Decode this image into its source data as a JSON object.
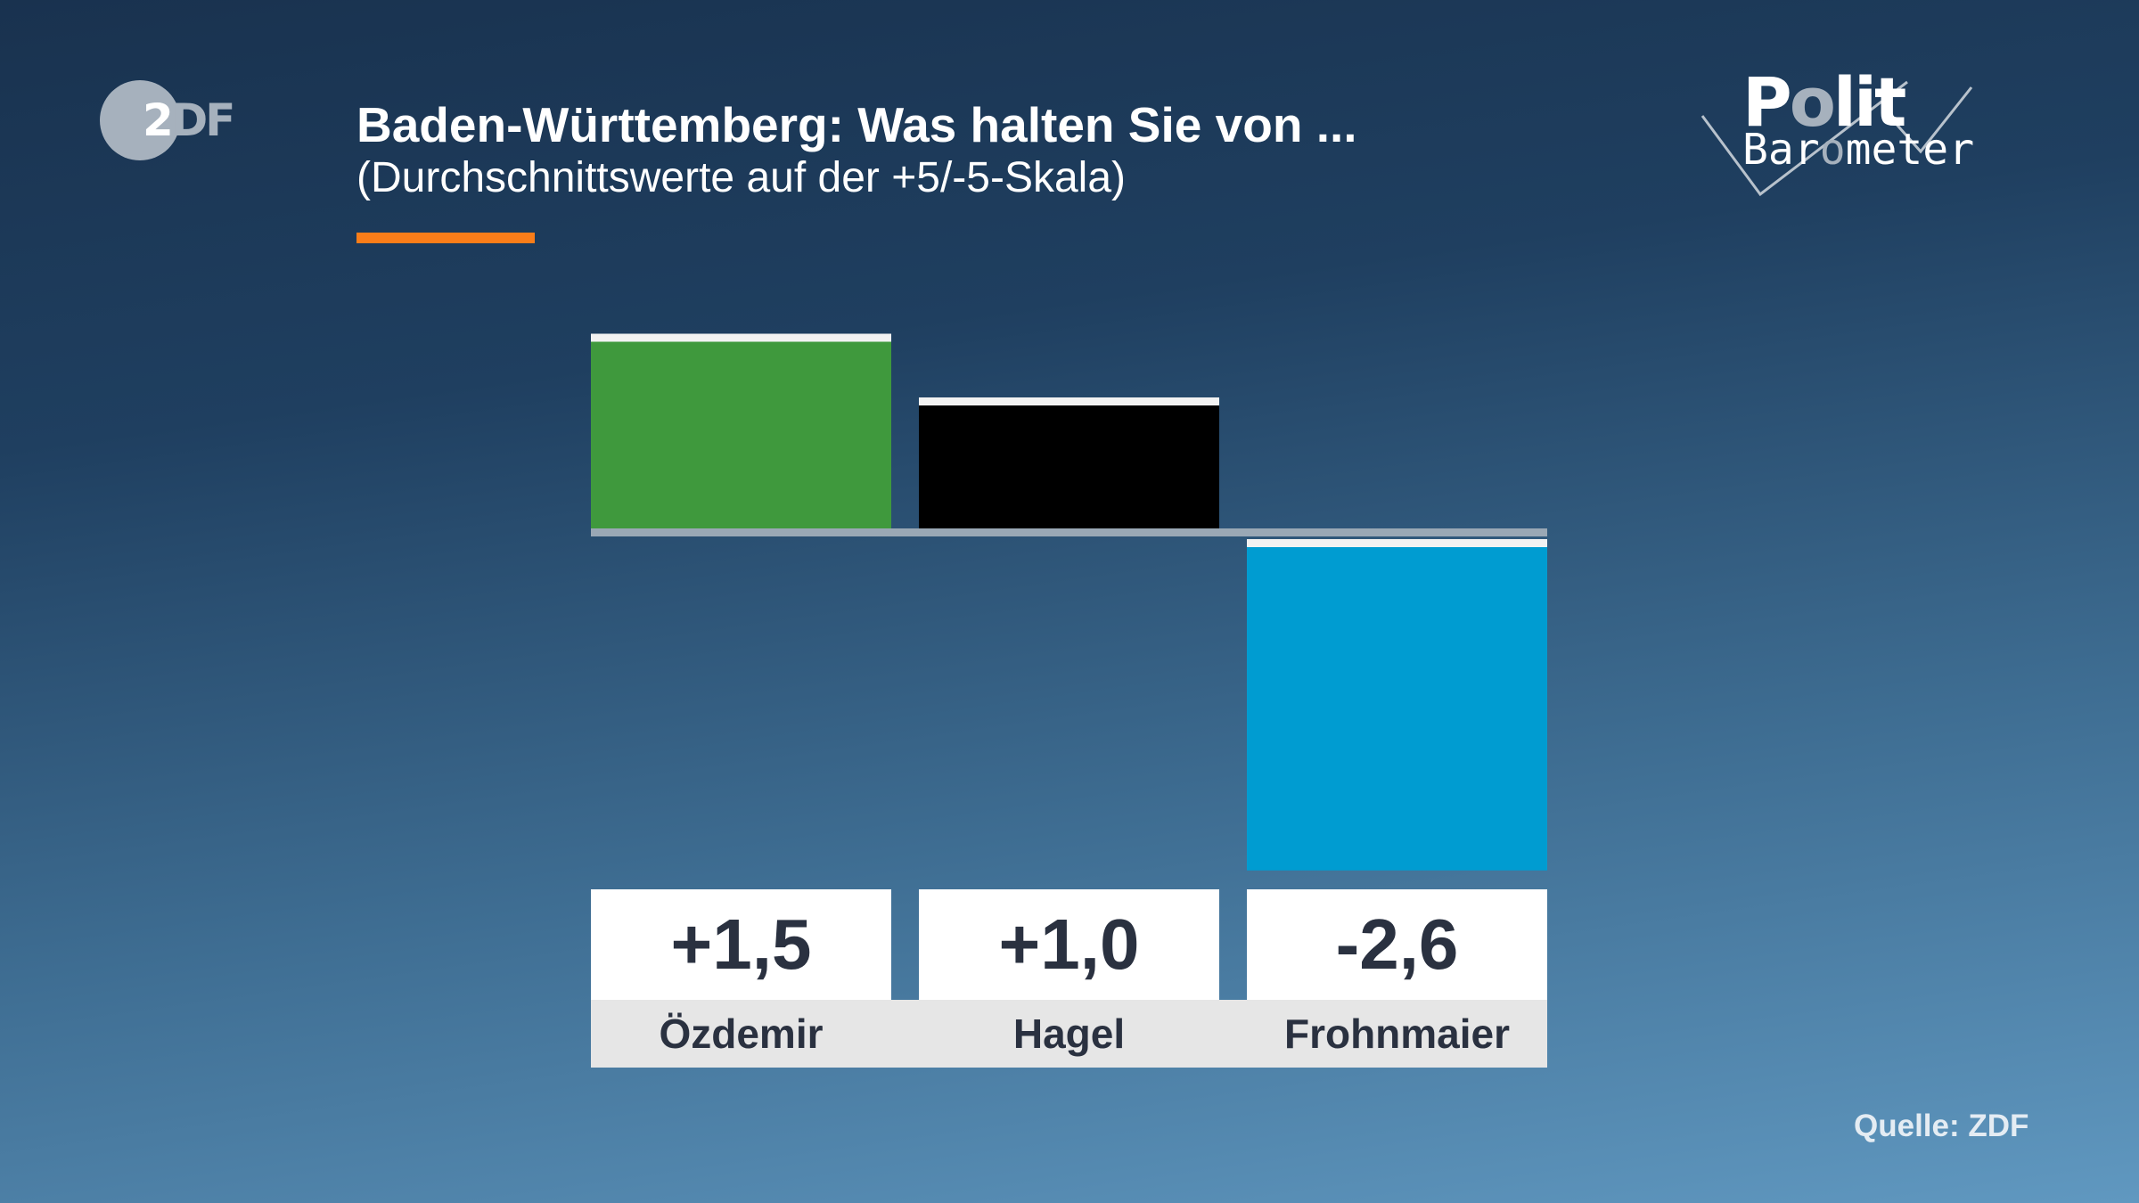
{
  "header": {
    "title": "Baden-Württemberg: Was halten Sie von ...",
    "subtitle": "(Durchschnittswerte auf der +5/-5-Skala)",
    "accent_color": "#fa7d19"
  },
  "branding": {
    "broadcaster_logo": "ZDF",
    "show_logo": "Polit Barometer"
  },
  "chart_data": {
    "type": "bar",
    "title": "Baden-Württemberg: Was halten Sie von ...",
    "subtitle": "(Durchschnittswerte auf der +5/-5-Skala)",
    "categories": [
      "Özdemir",
      "Hagel",
      "Frohnmaier"
    ],
    "values": [
      1.5,
      1.0,
      -2.6
    ],
    "value_labels": [
      "+1,5",
      "+1,0",
      "-2,6"
    ],
    "colors": [
      "#3f993d",
      "#000000",
      "#009cd1"
    ],
    "scale": [
      -5,
      5
    ],
    "grid": false,
    "legend": "none"
  },
  "footer": {
    "source": "Quelle: ZDF"
  }
}
